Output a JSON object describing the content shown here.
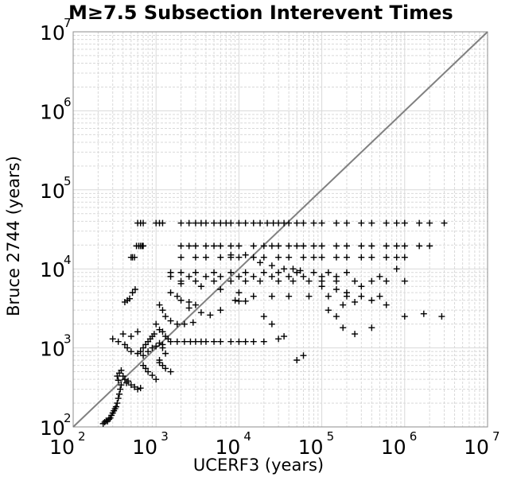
{
  "chart_data": {
    "type": "scatter",
    "title": "M≥7.5 Subsection Interevent Times",
    "xlabel": "UCERF3 (years)",
    "ylabel": "Bruce 2744 (years)",
    "xscale": "log",
    "yscale": "log",
    "xlim": [
      100,
      10000000
    ],
    "ylim": [
      100,
      10000000
    ],
    "x_ticks": [
      {
        "base": "10",
        "exp": "2"
      },
      {
        "base": "10",
        "exp": "3"
      },
      {
        "base": "10",
        "exp": "4"
      },
      {
        "base": "10",
        "exp": "5"
      },
      {
        "base": "10",
        "exp": "6"
      },
      {
        "base": "10",
        "exp": "7"
      }
    ],
    "y_ticks": [
      {
        "base": "10",
        "exp": "2"
      },
      {
        "base": "10",
        "exp": "3"
      },
      {
        "base": "10",
        "exp": "4"
      },
      {
        "base": "10",
        "exp": "5"
      },
      {
        "base": "10",
        "exp": "6"
      },
      {
        "base": "10",
        "exp": "7"
      }
    ],
    "grid": true,
    "marker": "+",
    "colors": {
      "points": "#000000",
      "reference_line": "#808080",
      "grid": "#d9d9d9",
      "frame": "#8c8c8c"
    },
    "reference_line": {
      "from": [
        100,
        100
      ],
      "to": [
        10000000,
        10000000
      ],
      "label": ""
    },
    "series": [
      {
        "points": [
          [
            230,
            110
          ],
          [
            240,
            115
          ],
          [
            250,
            120
          ],
          [
            260,
            118
          ],
          [
            270,
            125
          ],
          [
            280,
            130
          ],
          [
            290,
            140
          ],
          [
            300,
            150
          ],
          [
            310,
            160
          ],
          [
            320,
            170
          ],
          [
            330,
            180
          ],
          [
            340,
            200
          ],
          [
            350,
            230
          ],
          [
            360,
            260
          ],
          [
            370,
            300
          ],
          [
            380,
            340
          ],
          [
            350,
            390
          ],
          [
            340,
            440
          ],
          [
            360,
            480
          ],
          [
            380,
            520
          ],
          [
            400,
            440
          ],
          [
            420,
            400
          ],
          [
            440,
            360
          ],
          [
            460,
            380
          ],
          [
            500,
            340
          ],
          [
            550,
            320
          ],
          [
            600,
            300
          ],
          [
            650,
            310
          ],
          [
            420,
            1100
          ],
          [
            450,
            1000
          ],
          [
            500,
            900
          ],
          [
            600,
            850
          ],
          [
            700,
            800
          ],
          [
            800,
            900
          ],
          [
            900,
            1000
          ],
          [
            1000,
            1050
          ],
          [
            1100,
            1150
          ],
          [
            1200,
            1100
          ],
          [
            300,
            1300
          ],
          [
            350,
            1200
          ],
          [
            400,
            1500
          ],
          [
            500,
            1400
          ],
          [
            600,
            1600
          ],
          [
            420,
            3800
          ],
          [
            450,
            4000
          ],
          [
            480,
            4200
          ],
          [
            520,
            5000
          ],
          [
            560,
            5500
          ],
          [
            500,
            14000
          ],
          [
            520,
            14000
          ],
          [
            550,
            14000
          ],
          [
            580,
            19500
          ],
          [
            620,
            19500
          ],
          [
            650,
            19500
          ],
          [
            680,
            19500
          ],
          [
            700,
            19500
          ],
          [
            600,
            38000
          ],
          [
            650,
            38000
          ],
          [
            700,
            38000
          ],
          [
            1000,
            38000
          ],
          [
            1100,
            38000
          ],
          [
            1200,
            38000
          ],
          [
            2000,
            38000
          ],
          [
            2500,
            38000
          ],
          [
            3000,
            38000
          ],
          [
            3500,
            38000
          ],
          [
            4000,
            38000
          ],
          [
            5000,
            38000
          ],
          [
            6000,
            38000
          ],
          [
            7000,
            38000
          ],
          [
            8000,
            38000
          ],
          [
            10000,
            38000
          ],
          [
            12000,
            38000
          ],
          [
            15000,
            38000
          ],
          [
            18000,
            38000
          ],
          [
            22000,
            38000
          ],
          [
            26000,
            38000
          ],
          [
            30000,
            38000
          ],
          [
            35000,
            38000
          ],
          [
            40000,
            38000
          ],
          [
            50000,
            38000
          ],
          [
            60000,
            38000
          ],
          [
            80000,
            38000
          ],
          [
            100000,
            38000
          ],
          [
            150000,
            38000
          ],
          [
            200000,
            38000
          ],
          [
            300000,
            38000
          ],
          [
            400000,
            38000
          ],
          [
            600000,
            38000
          ],
          [
            800000,
            38000
          ],
          [
            1000000,
            38000
          ],
          [
            1500000,
            38000
          ],
          [
            2000000,
            38000
          ],
          [
            3000000,
            38000
          ],
          [
            2000,
            19500
          ],
          [
            2500,
            19500
          ],
          [
            3000,
            19500
          ],
          [
            4000,
            19500
          ],
          [
            5000,
            19500
          ],
          [
            6000,
            19500
          ],
          [
            8000,
            19500
          ],
          [
            10000,
            19500
          ],
          [
            15000,
            19500
          ],
          [
            20000,
            19500
          ],
          [
            25000,
            19500
          ],
          [
            30000,
            19500
          ],
          [
            40000,
            19500
          ],
          [
            50000,
            19500
          ],
          [
            60000,
            19500
          ],
          [
            80000,
            19500
          ],
          [
            100000,
            19500
          ],
          [
            150000,
            19500
          ],
          [
            200000,
            19500
          ],
          [
            300000,
            19500
          ],
          [
            400000,
            19500
          ],
          [
            600000,
            19500
          ],
          [
            800000,
            19500
          ],
          [
            1000000,
            19500
          ],
          [
            1500000,
            19500
          ],
          [
            2000000,
            19500
          ],
          [
            2000,
            14000
          ],
          [
            3000,
            14000
          ],
          [
            4000,
            14000
          ],
          [
            6000,
            14000
          ],
          [
            8000,
            14000
          ],
          [
            10000,
            14000
          ],
          [
            15000,
            14000
          ],
          [
            20000,
            14000
          ],
          [
            30000,
            14000
          ],
          [
            40000,
            14000
          ],
          [
            60000,
            14000
          ],
          [
            80000,
            14000
          ],
          [
            100000,
            14000
          ],
          [
            150000,
            14000
          ],
          [
            200000,
            14000
          ],
          [
            300000,
            14000
          ],
          [
            400000,
            14000
          ],
          [
            600000,
            14000
          ],
          [
            800000,
            14000
          ],
          [
            1000000,
            14000
          ],
          [
            1500,
            9000
          ],
          [
            2000,
            9000
          ],
          [
            3000,
            9000
          ],
          [
            5000,
            9000
          ],
          [
            8000,
            9000
          ],
          [
            12000,
            9000
          ],
          [
            20000,
            9000
          ],
          [
            30000,
            9000
          ],
          [
            50000,
            9000
          ],
          [
            80000,
            9000
          ],
          [
            120000,
            9000
          ],
          [
            200000,
            9000
          ],
          [
            1500,
            8000
          ],
          [
            2500,
            8000
          ],
          [
            4000,
            8000
          ],
          [
            6000,
            8000
          ],
          [
            10000,
            8000
          ],
          [
            15000,
            8000
          ],
          [
            25000,
            8000
          ],
          [
            40000,
            8000
          ],
          [
            60000,
            8000
          ],
          [
            100000,
            8000
          ],
          [
            150000,
            8000
          ],
          [
            2000,
            7000
          ],
          [
            3000,
            7000
          ],
          [
            5000,
            7000
          ],
          [
            8000,
            7000
          ],
          [
            12000,
            7000
          ],
          [
            18000,
            7000
          ],
          [
            30000,
            7000
          ],
          [
            45000,
            7000
          ],
          [
            70000,
            7000
          ],
          [
            100000,
            7000
          ],
          [
            150000,
            7000
          ],
          [
            250000,
            7000
          ],
          [
            400000,
            7000
          ],
          [
            600000,
            7000
          ],
          [
            1000000,
            7000
          ],
          [
            2000,
            6500
          ],
          [
            3500,
            6000
          ],
          [
            6000,
            5500
          ],
          [
            10000,
            5000
          ],
          [
            15000,
            4500
          ],
          [
            25000,
            4500
          ],
          [
            40000,
            4500
          ],
          [
            70000,
            4500
          ],
          [
            120000,
            4500
          ],
          [
            200000,
            4500
          ],
          [
            300000,
            4500
          ],
          [
            500000,
            4500
          ],
          [
            1500,
            5000
          ],
          [
            1800,
            4500
          ],
          [
            2000,
            4000
          ],
          [
            2500,
            3800
          ],
          [
            3000,
            3500
          ],
          [
            10000,
            3900
          ],
          [
            12000,
            3900
          ],
          [
            1100,
            3500
          ],
          [
            1200,
            3000
          ],
          [
            1300,
            2500
          ],
          [
            1500,
            2200
          ],
          [
            1800,
            2000
          ],
          [
            2200,
            2000
          ],
          [
            2800,
            2100
          ],
          [
            1000,
            2000
          ],
          [
            1100,
            1700
          ],
          [
            1200,
            1600
          ],
          [
            1300,
            1400
          ],
          [
            1400,
            1300
          ],
          [
            1500,
            1200
          ],
          [
            1800,
            1200
          ],
          [
            2200,
            1200
          ],
          [
            2600,
            1200
          ],
          [
            3000,
            1200
          ],
          [
            3500,
            1200
          ],
          [
            4000,
            1200
          ],
          [
            5000,
            1200
          ],
          [
            6000,
            1200
          ],
          [
            8000,
            1200
          ],
          [
            10000,
            1200
          ],
          [
            12000,
            1200
          ],
          [
            15000,
            1200
          ],
          [
            20000,
            1200
          ],
          [
            30000,
            1300
          ],
          [
            1200,
            1000
          ],
          [
            1300,
            850
          ],
          [
            1100,
            700
          ],
          [
            1100,
            650
          ],
          [
            1200,
            600
          ],
          [
            1300,
            550
          ],
          [
            1500,
            500
          ],
          [
            800,
            500
          ],
          [
            900,
            450
          ],
          [
            1000,
            400
          ],
          [
            700,
            600
          ],
          [
            750,
            550
          ],
          [
            650,
            900
          ],
          [
            700,
            1000
          ],
          [
            750,
            1100
          ],
          [
            800,
            1200
          ],
          [
            850,
            1300
          ],
          [
            900,
            1400
          ],
          [
            950,
            1500
          ],
          [
            3500,
            2800
          ],
          [
            4500,
            2600
          ],
          [
            6000,
            3000
          ],
          [
            9000,
            4000
          ],
          [
            2500,
            3200
          ],
          [
            20000,
            2500
          ],
          [
            25000,
            2000
          ],
          [
            35000,
            1400
          ],
          [
            50000,
            700
          ],
          [
            60000,
            800
          ],
          [
            8000,
            15000
          ],
          [
            12000,
            15000
          ],
          [
            18000,
            12000
          ],
          [
            25000,
            11000
          ],
          [
            35000,
            10000
          ],
          [
            45000,
            10000
          ],
          [
            55000,
            9500
          ],
          [
            100000,
            6000
          ],
          [
            150000,
            5500
          ],
          [
            200000,
            5000
          ],
          [
            300000,
            6000
          ],
          [
            500000,
            8000
          ],
          [
            800000,
            10000
          ],
          [
            120000,
            3000
          ],
          [
            150000,
            2500
          ],
          [
            180000,
            3500
          ],
          [
            250000,
            3800
          ],
          [
            400000,
            4000
          ],
          [
            600000,
            3500
          ],
          [
            180000,
            1800
          ],
          [
            250000,
            1500
          ],
          [
            400000,
            1800
          ],
          [
            1000000,
            2500
          ],
          [
            1700000,
            2700
          ],
          [
            2800000,
            2500
          ]
        ]
      }
    ]
  }
}
